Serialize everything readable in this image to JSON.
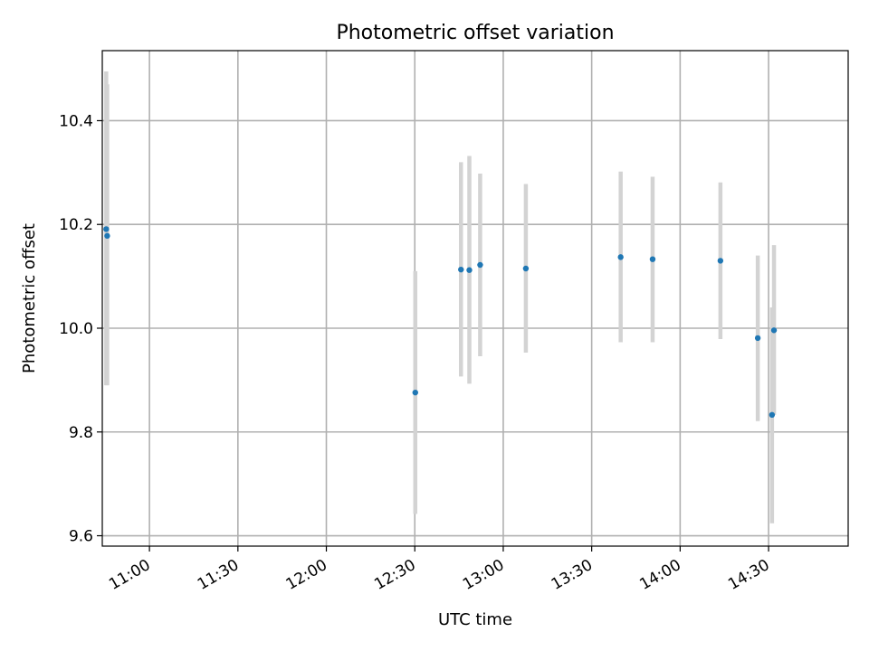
{
  "chart_data": {
    "type": "scatter",
    "title": "Photometric offset variation",
    "xlabel": "UTC time",
    "ylabel": "Photometric offset",
    "x_axis_type": "time",
    "xlim": [
      "10:44",
      "14:57"
    ],
    "ylim": [
      9.58,
      10.535
    ],
    "grid": true,
    "x_ticks": [
      "11:00",
      "11:30",
      "12:00",
      "12:30",
      "13:00",
      "13:30",
      "14:00",
      "14:30"
    ],
    "y_ticks": [
      "9.6",
      "9.8",
      "10.0",
      "10.2",
      "10.4"
    ],
    "colors": {
      "points": "#1f77b4",
      "errorbars": "#d3d3d3"
    },
    "points": [
      {
        "x": "10:45:20",
        "y": 10.191,
        "err_low": 9.89,
        "err_high": 10.495
      },
      {
        "x": "10:45:40",
        "y": 10.178,
        "err_low": 9.89,
        "err_high": 10.47
      },
      {
        "x": "12:30:10",
        "y": 9.876,
        "err_low": 9.642,
        "err_high": 10.11
      },
      {
        "x": "12:45:40",
        "y": 10.113,
        "err_low": 9.907,
        "err_high": 10.32
      },
      {
        "x": "12:48:30",
        "y": 10.112,
        "err_low": 9.893,
        "err_high": 10.332
      },
      {
        "x": "12:52:10",
        "y": 10.122,
        "err_low": 9.946,
        "err_high": 10.298
      },
      {
        "x": "13:07:40",
        "y": 10.115,
        "err_low": 9.953,
        "err_high": 10.278
      },
      {
        "x": "13:39:50",
        "y": 10.137,
        "err_low": 9.973,
        "err_high": 10.302
      },
      {
        "x": "13:50:40",
        "y": 10.133,
        "err_low": 9.973,
        "err_high": 10.292
      },
      {
        "x": "14:13:40",
        "y": 10.13,
        "err_low": 9.979,
        "err_high": 10.281
      },
      {
        "x": "14:26:20",
        "y": 9.981,
        "err_low": 9.821,
        "err_high": 10.14
      },
      {
        "x": "14:31:10",
        "y": 9.833,
        "err_low": 9.624,
        "err_high": 10.04
      },
      {
        "x": "14:31:50",
        "y": 9.996,
        "err_low": 9.833,
        "err_high": 10.16
      }
    ]
  }
}
